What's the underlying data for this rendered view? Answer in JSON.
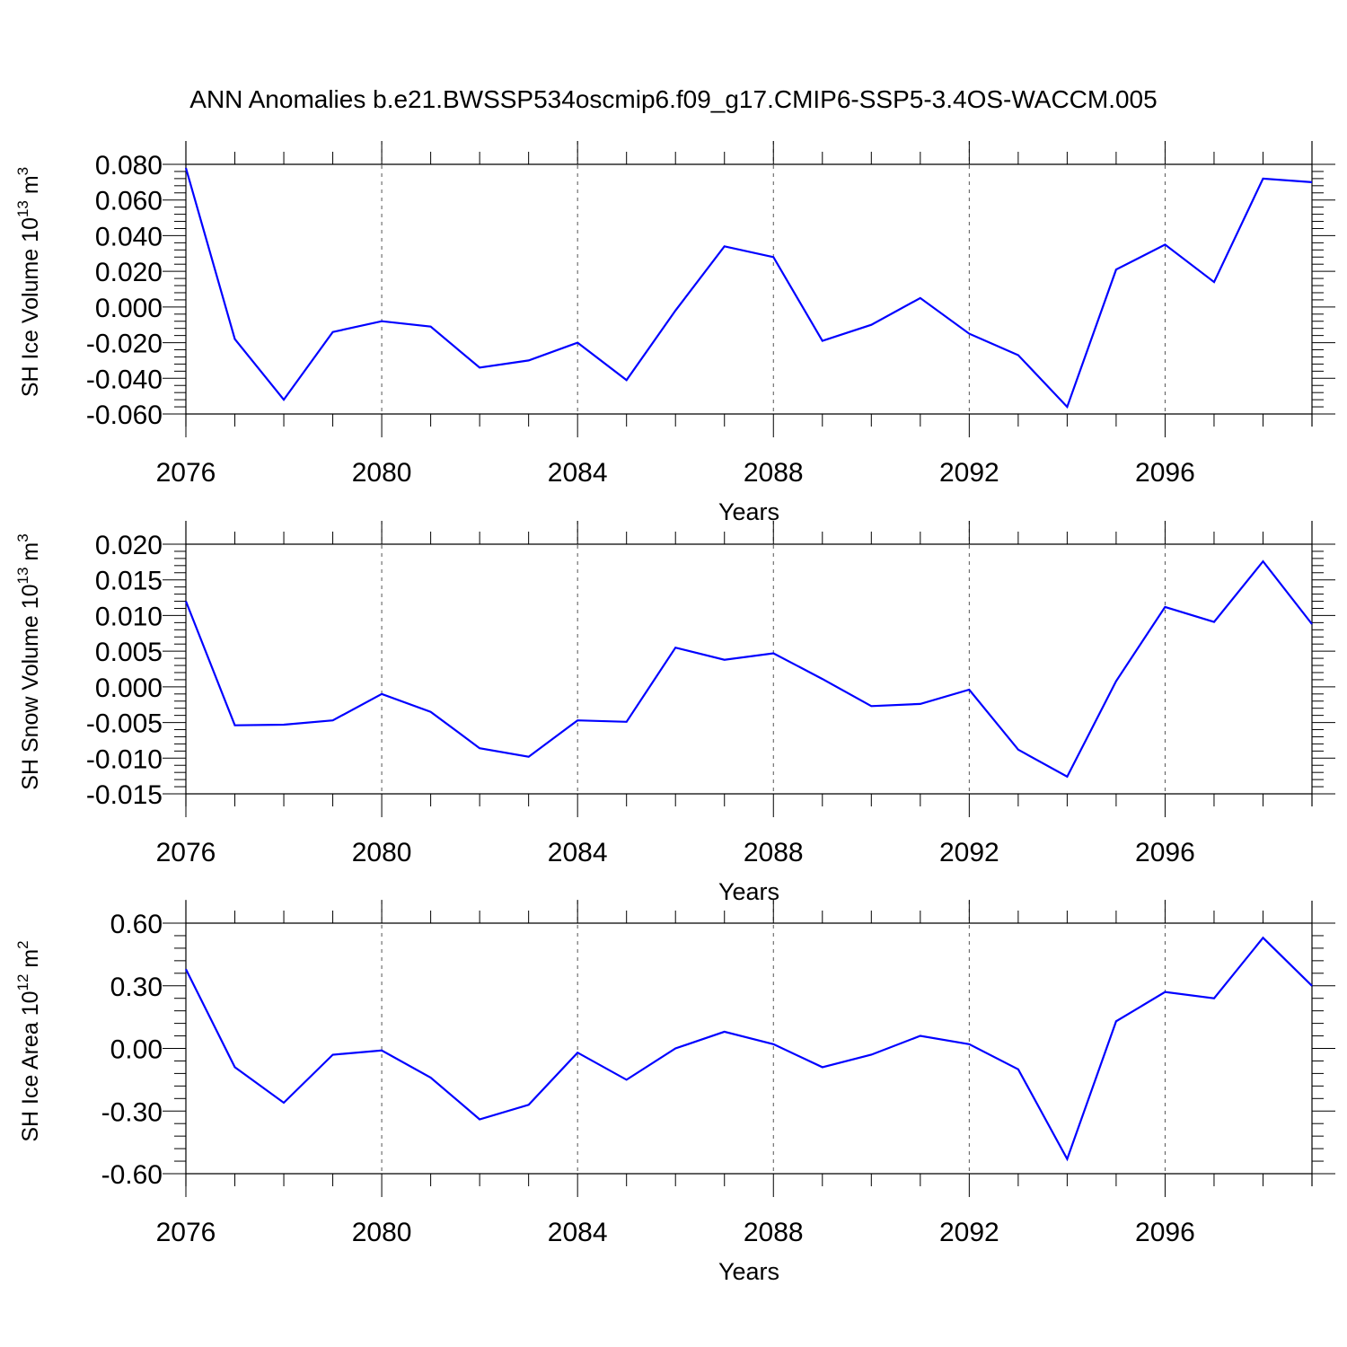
{
  "figure_title": "ANN Anomalies b.e21.BWSSP534oscmip6.f09_g17.CMIP6-SSP5-3.4OS-WACCM.005",
  "line_color": "#0000ff",
  "chart_data": [
    {
      "type": "line",
      "ylabel_main": "SH Ice Volume 10",
      "ylabel_exp": "13",
      "ylabel_unit": " m",
      "ylabel_unit_exp": "3",
      "xlabel": "Years",
      "xlim": [
        2076,
        2099
      ],
      "ylim": [
        -0.06,
        0.08
      ],
      "xticks": [
        2076,
        2080,
        2084,
        2088,
        2092,
        2096
      ],
      "yticks": [
        0.08,
        0.06,
        0.04,
        0.02,
        0.0,
        -0.02,
        -0.04,
        -0.06
      ],
      "ytick_labels": [
        "0.080",
        "0.060",
        "0.040",
        "0.020",
        "0.000",
        "-0.020",
        "-0.040",
        "-0.060"
      ],
      "x": [
        2076,
        2077,
        2078,
        2079,
        2080,
        2081,
        2082,
        2083,
        2084,
        2085,
        2086,
        2087,
        2088,
        2089,
        2090,
        2091,
        2092,
        2093,
        2094,
        2095,
        2096,
        2097,
        2098,
        2099
      ],
      "values": [
        0.078,
        -0.018,
        -0.052,
        -0.014,
        -0.008,
        -0.011,
        -0.034,
        -0.03,
        -0.02,
        -0.041,
        -0.002,
        0.034,
        0.028,
        -0.019,
        -0.01,
        0.005,
        -0.015,
        -0.027,
        -0.056,
        0.021,
        0.035,
        0.014,
        0.072,
        0.07
      ]
    },
    {
      "type": "line",
      "ylabel_main": "SH Snow Volume 10",
      "ylabel_exp": "13",
      "ylabel_unit": " m",
      "ylabel_unit_exp": "3",
      "xlabel": "Years",
      "xlim": [
        2076,
        2099
      ],
      "ylim": [
        -0.015,
        0.02
      ],
      "xticks": [
        2076,
        2080,
        2084,
        2088,
        2092,
        2096
      ],
      "yticks": [
        0.02,
        0.015,
        0.01,
        0.005,
        0.0,
        -0.005,
        -0.01,
        -0.015
      ],
      "ytick_labels": [
        "0.020",
        "0.015",
        "0.010",
        "0.005",
        "0.000",
        "-0.005",
        "-0.010",
        "-0.015"
      ],
      "x": [
        2076,
        2077,
        2078,
        2079,
        2080,
        2081,
        2082,
        2083,
        2084,
        2085,
        2086,
        2087,
        2088,
        2089,
        2090,
        2091,
        2092,
        2093,
        2094,
        2095,
        2096,
        2097,
        2098,
        2099
      ],
      "values": [
        0.012,
        -0.0054,
        -0.0053,
        -0.0047,
        -0.001,
        -0.0035,
        -0.0086,
        -0.0098,
        -0.0047,
        -0.0049,
        0.0055,
        0.0038,
        0.0047,
        0.0011,
        -0.0027,
        -0.0024,
        -0.0004,
        -0.0088,
        -0.0126,
        0.0008,
        0.0112,
        0.0091,
        0.0176,
        0.0088
      ]
    },
    {
      "type": "line",
      "ylabel_main": "SH Ice Area 10",
      "ylabel_exp": "12",
      "ylabel_unit": " m",
      "ylabel_unit_exp": "2",
      "xlabel": "Years",
      "xlim": [
        2076,
        2099
      ],
      "ylim": [
        -0.6,
        0.6
      ],
      "xticks": [
        2076,
        2080,
        2084,
        2088,
        2092,
        2096
      ],
      "yticks": [
        0.6,
        0.3,
        0.0,
        -0.3,
        -0.6
      ],
      "ytick_labels": [
        "0.60",
        "0.30",
        "0.00",
        "-0.30",
        "-0.60"
      ],
      "x": [
        2076,
        2077,
        2078,
        2079,
        2080,
        2081,
        2082,
        2083,
        2084,
        2085,
        2086,
        2087,
        2088,
        2089,
        2090,
        2091,
        2092,
        2093,
        2094,
        2095,
        2096,
        2097,
        2098,
        2099
      ],
      "values": [
        0.38,
        -0.09,
        -0.26,
        -0.03,
        -0.01,
        -0.14,
        -0.34,
        -0.27,
        -0.02,
        -0.15,
        0.0,
        0.08,
        0.02,
        -0.09,
        -0.03,
        0.06,
        0.02,
        -0.1,
        -0.53,
        0.13,
        0.27,
        0.24,
        0.53,
        0.3
      ]
    }
  ]
}
